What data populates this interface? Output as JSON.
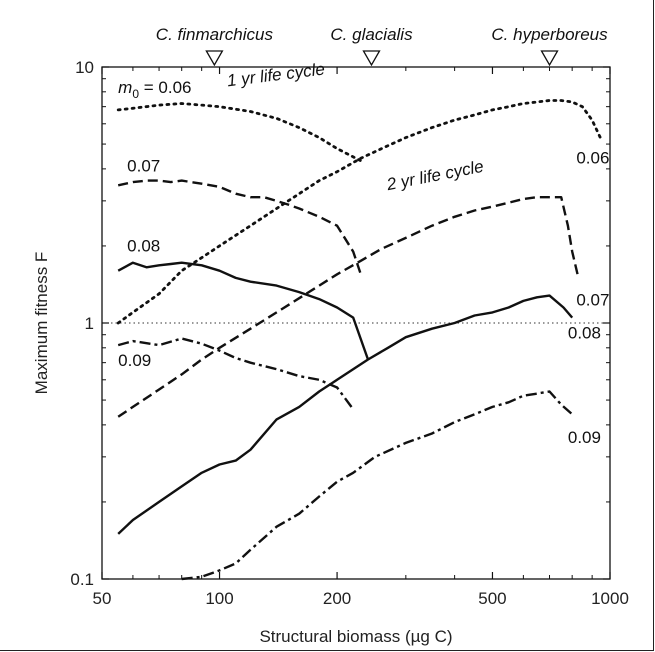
{
  "chart_data": {
    "type": "line",
    "xlabel": "Structural biomass (µg C)",
    "ylabel": "Maximum fitness F",
    "xscale": "log",
    "yscale": "log",
    "xlim": [
      50,
      1000
    ],
    "ylim": [
      0.1,
      10
    ],
    "x_ticks": [
      {
        "value": 50,
        "label": "50"
      },
      {
        "value": 100,
        "label": "100"
      },
      {
        "value": 200,
        "label": "200"
      },
      {
        "value": 500,
        "label": "500"
      },
      {
        "value": 1000,
        "label": "1000"
      }
    ],
    "y_ticks": [
      {
        "value": 0.1,
        "label": "0.1"
      },
      {
        "value": 1,
        "label": "1"
      },
      {
        "value": 10,
        "label": "10"
      }
    ],
    "reference_line": {
      "y": 1,
      "style": "dotted"
    },
    "species_markers": [
      {
        "label": "C. finmarchicus",
        "x": 97
      },
      {
        "label": "C. glacialis",
        "x": 245
      },
      {
        "label": "C. hyperboreus",
        "x": 700
      }
    ],
    "annotations": [
      {
        "text_prefix": "m",
        "subscript": "0",
        "text_suffix": " = 0.06",
        "x": 55,
        "y": 7.9
      },
      {
        "text": "1 yr life cycle",
        "x": 105,
        "y": 8.4,
        "angle": -7
      },
      {
        "text": "2 yr life cycle",
        "x": 270,
        "y": 3.3,
        "angle": -11
      },
      {
        "text": "0.07",
        "x": 58,
        "y": 3.9
      },
      {
        "text": "0.08",
        "x": 58,
        "y": 1.9
      },
      {
        "text": "0.09",
        "x": 55,
        "y": 0.68
      },
      {
        "text": "0.06",
        "x": 820,
        "y": 4.2
      },
      {
        "text": "0.07",
        "x": 820,
        "y": 1.17
      },
      {
        "text": "0.08",
        "x": 780,
        "y": 0.87
      },
      {
        "text": "0.09",
        "x": 780,
        "y": 0.34
      }
    ],
    "series": [
      {
        "m0": "0.06",
        "cycle": "1 yr",
        "dash": "dotted",
        "x": [
          55,
          60,
          70,
          80,
          90,
          100,
          120,
          140,
          160,
          180,
          200,
          230
        ],
        "y": [
          6.8,
          6.9,
          7.1,
          7.2,
          7.1,
          7.0,
          6.7,
          6.3,
          5.8,
          5.3,
          4.8,
          4.3
        ]
      },
      {
        "m0": "0.06",
        "cycle": "2 yr",
        "dash": "dotted",
        "x": [
          55,
          60,
          70,
          80,
          90,
          100,
          120,
          140,
          160,
          180,
          200,
          230,
          260,
          300,
          350,
          400,
          450,
          500,
          550,
          600,
          650,
          700,
          750,
          800,
          850,
          900,
          950
        ],
        "y": [
          1.0,
          1.1,
          1.3,
          1.6,
          1.8,
          2.0,
          2.4,
          2.8,
          3.2,
          3.6,
          3.9,
          4.4,
          4.8,
          5.3,
          5.8,
          6.2,
          6.5,
          6.8,
          7.0,
          7.2,
          7.3,
          7.4,
          7.4,
          7.3,
          7.0,
          6.2,
          5.2
        ]
      },
      {
        "m0": "0.07",
        "cycle": "1 yr",
        "dash": "dashed",
        "x": [
          55,
          60,
          65,
          70,
          75,
          80,
          90,
          100,
          110,
          120,
          130,
          140,
          150,
          160,
          180,
          200,
          220,
          230
        ],
        "y": [
          3.45,
          3.55,
          3.6,
          3.6,
          3.55,
          3.6,
          3.5,
          3.4,
          3.2,
          3.1,
          3.1,
          3.0,
          2.9,
          2.8,
          2.6,
          2.4,
          1.9,
          1.55
        ]
      },
      {
        "m0": "0.07",
        "cycle": "2 yr",
        "dash": "dashed",
        "x": [
          55,
          60,
          70,
          80,
          90,
          100,
          120,
          140,
          160,
          180,
          200,
          230,
          260,
          300,
          350,
          400,
          450,
          500,
          550,
          600,
          650,
          700,
          750,
          780,
          800,
          830
        ],
        "y": [
          0.43,
          0.47,
          0.55,
          0.63,
          0.72,
          0.8,
          0.95,
          1.1,
          1.25,
          1.4,
          1.55,
          1.75,
          1.95,
          2.15,
          2.4,
          2.6,
          2.75,
          2.85,
          2.95,
          3.05,
          3.1,
          3.1,
          3.1,
          2.4,
          1.9,
          1.5
        ]
      },
      {
        "m0": "0.08",
        "cycle": "1 yr",
        "dash": "solid",
        "x": [
          55,
          60,
          65,
          70,
          75,
          80,
          90,
          100,
          110,
          120,
          140,
          160,
          180,
          200,
          220,
          240
        ],
        "y": [
          1.6,
          1.72,
          1.65,
          1.68,
          1.7,
          1.72,
          1.68,
          1.6,
          1.5,
          1.45,
          1.4,
          1.32,
          1.24,
          1.15,
          1.05,
          0.72
        ]
      },
      {
        "m0": "0.08",
        "cycle": "2 yr",
        "dash": "solid",
        "x": [
          55,
          60,
          70,
          80,
          90,
          100,
          110,
          120,
          140,
          160,
          180,
          200,
          240,
          270,
          300,
          350,
          400,
          450,
          500,
          550,
          600,
          650,
          700,
          760,
          800
        ],
        "y": [
          0.15,
          0.17,
          0.2,
          0.23,
          0.26,
          0.28,
          0.29,
          0.32,
          0.42,
          0.47,
          0.54,
          0.6,
          0.72,
          0.8,
          0.88,
          0.95,
          1.0,
          1.07,
          1.1,
          1.15,
          1.22,
          1.26,
          1.28,
          1.15,
          1.05
        ]
      },
      {
        "m0": "0.09",
        "cycle": "1 yr",
        "dash": "dashdot",
        "x": [
          55,
          60,
          70,
          80,
          90,
          100,
          110,
          120,
          140,
          160,
          180,
          200,
          220
        ],
        "y": [
          0.82,
          0.85,
          0.82,
          0.87,
          0.83,
          0.78,
          0.73,
          0.7,
          0.66,
          0.62,
          0.6,
          0.56,
          0.46
        ]
      },
      {
        "m0": "0.09",
        "cycle": "2 yr",
        "dash": "dashdot",
        "x": [
          80,
          90,
          100,
          110,
          120,
          140,
          160,
          180,
          200,
          220,
          250,
          300,
          350,
          400,
          450,
          500,
          550,
          600,
          650,
          700,
          750,
          800
        ],
        "y": [
          0.1,
          0.102,
          0.108,
          0.115,
          0.13,
          0.16,
          0.18,
          0.21,
          0.24,
          0.26,
          0.3,
          0.34,
          0.37,
          0.41,
          0.44,
          0.47,
          0.49,
          0.52,
          0.53,
          0.54,
          0.48,
          0.44
        ]
      }
    ]
  }
}
